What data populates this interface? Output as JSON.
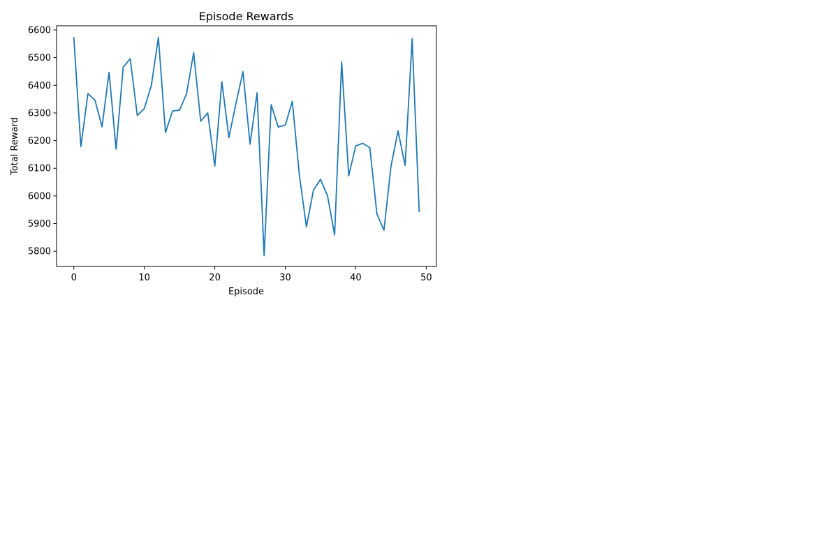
{
  "chart_data": {
    "type": "line",
    "title": "Episode Rewards",
    "xlabel": "Episode",
    "ylabel": "Total Reward",
    "xlim": [
      -2.45,
      51.45
    ],
    "ylim": [
      5745,
      6615
    ],
    "xticks": [
      0,
      10,
      20,
      30,
      40,
      50
    ],
    "yticks": [
      5800,
      5900,
      6000,
      6100,
      6200,
      6300,
      6400,
      6500,
      6600
    ],
    "grid": false,
    "line_color": "#1f77b4",
    "series": [
      {
        "x": [
          0,
          1,
          2,
          3,
          4,
          5,
          6,
          7,
          8,
          9,
          10,
          11,
          12,
          13,
          14,
          15,
          16,
          17,
          18,
          19,
          20,
          21,
          22,
          23,
          24,
          25,
          26,
          27,
          28,
          29,
          30,
          31,
          32,
          33,
          34,
          35,
          36,
          37,
          38,
          39,
          40,
          41,
          42,
          43,
          44,
          45,
          46,
          47,
          48,
          49
        ],
        "values": [
          6572,
          6178,
          6370,
          6346,
          6250,
          6447,
          6169,
          6465,
          6496,
          6291,
          6316,
          6400,
          6573,
          6229,
          6307,
          6310,
          6370,
          6518,
          6270,
          6300,
          6108,
          6413,
          6211,
          6334,
          6449,
          6187,
          6373,
          5784,
          6330,
          6249,
          6256,
          6342,
          6075,
          5888,
          6021,
          6060,
          6000,
          5859,
          6484,
          6073,
          6181,
          6190,
          6174,
          5935,
          5876,
          6107,
          6235,
          6110,
          6569,
          5944
        ]
      }
    ]
  }
}
